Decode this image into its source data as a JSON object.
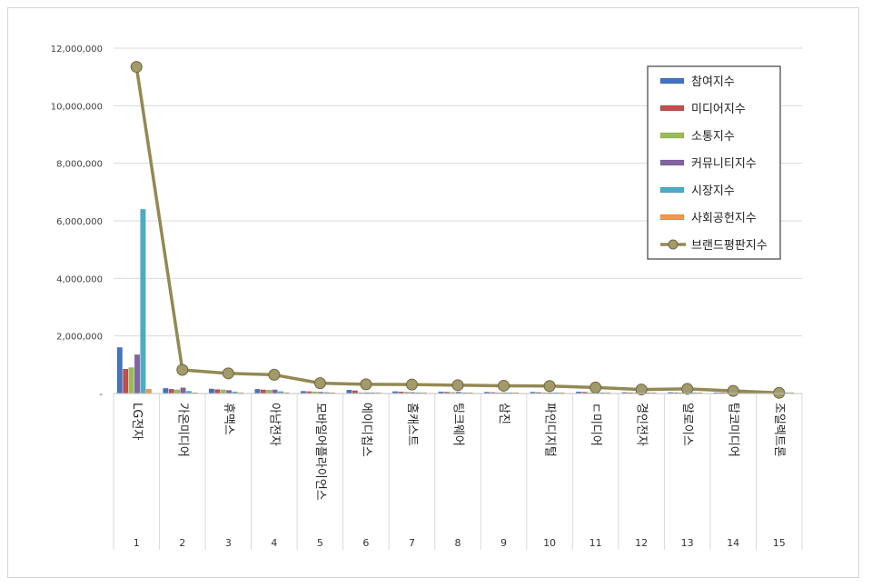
{
  "chart_data": {
    "type": "bar",
    "companies": [
      "LG전자",
      "가온미디어",
      "휴맥스",
      "아남전자",
      "모바일어플라이언스",
      "에이디칩스",
      "홈캐스트",
      "팅크웨어",
      "삼진",
      "파인디지털",
      "ㄷ미디어",
      "경인전자",
      "알로이스",
      "탑코미디어",
      "조일렉트론"
    ],
    "ranks": [
      "1",
      "2",
      "3",
      "4",
      "5",
      "6",
      "7",
      "8",
      "9",
      "10",
      "11",
      "12",
      "13",
      "14",
      "15"
    ],
    "yticks": [
      "-",
      "2,000,000",
      "4,000,000",
      "6,000,000",
      "8,000,000",
      "10,000,000",
      "12,000,000"
    ],
    "ylim": [
      0,
      12000000
    ],
    "grid": true,
    "legend_position": "top-right",
    "series": [
      {
        "name": "참여지수",
        "color": "#4472c4",
        "values": [
          1600000,
          180000,
          160000,
          150000,
          80000,
          120000,
          70000,
          60000,
          50000,
          50000,
          60000,
          40000,
          40000,
          30000,
          20000
        ]
      },
      {
        "name": "미디어지수",
        "color": "#c0504d",
        "values": [
          850000,
          150000,
          140000,
          130000,
          70000,
          100000,
          60000,
          50000,
          40000,
          40000,
          50000,
          30000,
          30000,
          20000,
          15000
        ]
      },
      {
        "name": "소통지수",
        "color": "#9bbb59",
        "values": [
          900000,
          130000,
          130000,
          120000,
          60000,
          30000,
          50000,
          40000,
          30000,
          30000,
          30000,
          20000,
          20000,
          15000,
          10000
        ]
      },
      {
        "name": "커뮤니티지수",
        "color": "#8064a2",
        "values": [
          1350000,
          200000,
          110000,
          130000,
          50000,
          30000,
          40000,
          50000,
          20000,
          20000,
          20000,
          20000,
          20000,
          15000,
          10000
        ]
      },
      {
        "name": "시장지수",
        "color": "#4bacc6",
        "values": [
          6400000,
          80000,
          60000,
          70000,
          40000,
          20000,
          30000,
          20000,
          20000,
          20000,
          20000,
          15000,
          15000,
          10000,
          10000
        ]
      },
      {
        "name": "사회공헌지수",
        "color": "#f79646",
        "values": [
          150000,
          20000,
          20000,
          15000,
          10000,
          10000,
          10000,
          10000,
          10000,
          10000,
          10000,
          5000,
          5000,
          5000,
          5000
        ]
      },
      {
        "name": "브랜드평판지수",
        "color": "#938953",
        "type": "line",
        "values": [
          11350000,
          820000,
          700000,
          650000,
          360000,
          320000,
          310000,
          290000,
          270000,
          260000,
          210000,
          140000,
          160000,
          90000,
          25000
        ]
      }
    ]
  }
}
